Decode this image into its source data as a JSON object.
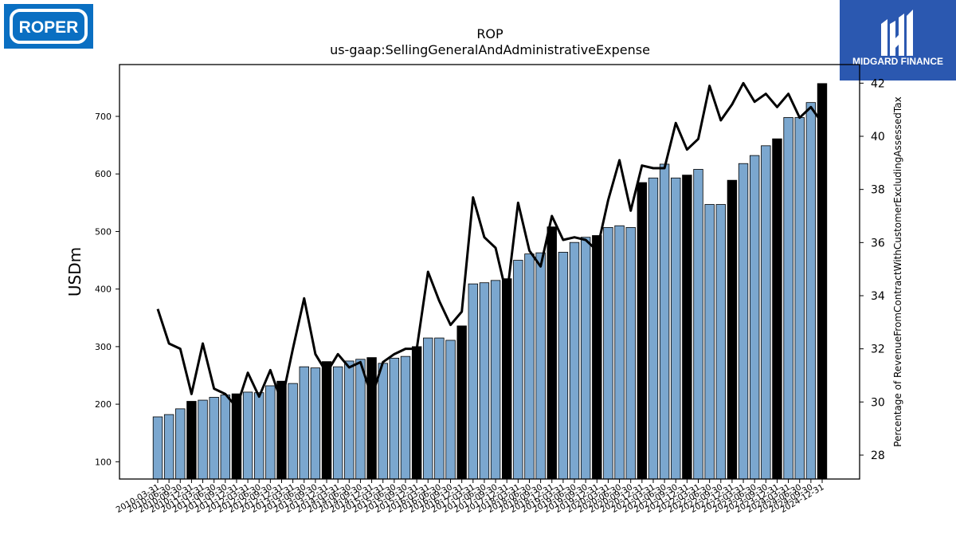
{
  "brand": {
    "left_logo_text": "ROPER",
    "left_logo_color": "#0a6fc2",
    "right_logo_text": "MIDGARD FINANCE",
    "right_logo_color": "#2b58b0"
  },
  "chart_data": {
    "type": "bar",
    "title": "ROP",
    "subtitle": "us-gaap:SellingGeneralAndAdministrativeExpense",
    "ylabel": "USDm",
    "y2label": "Percentage of RevenueFromContractWithCustomerExcludingAssessedTax",
    "ylim": [
      70,
      790
    ],
    "y2lim": [
      27.1,
      42.7
    ],
    "yticks": [
      100,
      200,
      300,
      400,
      500,
      600,
      700
    ],
    "y2ticks": [
      28,
      30,
      32,
      34,
      36,
      38,
      40,
      42
    ],
    "colors": {
      "quarter": "#7ba7cf",
      "annual": "#000000",
      "line": "#000000"
    },
    "categories": [
      "2010-03-31",
      "2010-06-30",
      "2010-09-30",
      "2010-12-31",
      "2011-03-31",
      "2011-06-30",
      "2011-09-30",
      "2011-12-31",
      "2012-03-31",
      "2012-06-30",
      "2012-09-30",
      "2012-12-31",
      "2013-03-31",
      "2013-06-30",
      "2013-09-30",
      "2013-12-31",
      "2014-03-31",
      "2014-06-30",
      "2014-09-30",
      "2014-12-31",
      "2015-03-31",
      "2015-06-30",
      "2015-09-30",
      "2015-12-31",
      "2016-03-31",
      "2016-06-30",
      "2016-09-30",
      "2016-12-31",
      "2017-03-31",
      "2017-06-30",
      "2017-09-30",
      "2017-12-31",
      "2018-03-31",
      "2018-06-30",
      "2018-09-30",
      "2018-12-31",
      "2019-03-31",
      "2019-06-30",
      "2019-09-30",
      "2019-12-31",
      "2020-03-31",
      "2020-06-30",
      "2020-09-30",
      "2020-12-31",
      "2021-03-31",
      "2021-06-30",
      "2021-09-30",
      "2021-12-31",
      "2022-03-31",
      "2022-06-30",
      "2022-09-30",
      "2022-12-31",
      "2023-03-31",
      "2023-06-30",
      "2023-09-30",
      "2023-12-31",
      "2024-03-31",
      "2024-06-30",
      "2024-09-30",
      "2024-12-31"
    ],
    "values": [
      178,
      182,
      192,
      205,
      207,
      212,
      216,
      218,
      221,
      220,
      232,
      240,
      236,
      265,
      263,
      274,
      265,
      275,
      278,
      281,
      271,
      280,
      283,
      300,
      315,
      315,
      311,
      336,
      409,
      411,
      415,
      418,
      450,
      461,
      463,
      508,
      464,
      481,
      490,
      493,
      507,
      510,
      507,
      585,
      593,
      617,
      593,
      598,
      608,
      547,
      547,
      589,
      618,
      632,
      649,
      661,
      698,
      698,
      724,
      757
    ],
    "annual": [
      false,
      false,
      false,
      true,
      false,
      false,
      false,
      true,
      false,
      false,
      false,
      true,
      false,
      false,
      false,
      true,
      false,
      false,
      false,
      true,
      false,
      false,
      false,
      true,
      false,
      false,
      false,
      true,
      false,
      false,
      false,
      true,
      false,
      false,
      false,
      true,
      false,
      false,
      false,
      true,
      false,
      false,
      false,
      true,
      false,
      false,
      false,
      true,
      false,
      false,
      false,
      true,
      false,
      false,
      false,
      true,
      false,
      false,
      false,
      true
    ],
    "line_values": [
      33.5,
      32.2,
      32.0,
      30.3,
      32.2,
      30.5,
      30.3,
      29.8,
      31.1,
      30.2,
      31.2,
      30.0,
      32.0,
      33.9,
      31.8,
      31.1,
      31.8,
      31.3,
      31.5,
      30.2,
      31.5,
      31.8,
      32.0,
      32.0,
      34.9,
      33.8,
      32.9,
      33.4,
      37.7,
      36.2,
      35.8,
      34.0,
      37.5,
      35.7,
      35.1,
      37.0,
      36.1,
      36.2,
      36.1,
      35.7,
      37.6,
      39.1,
      37.2,
      38.9,
      38.8,
      38.8,
      40.5,
      39.5,
      39.9,
      41.9,
      40.6,
      41.2,
      42.0,
      41.3,
      41.6,
      41.1,
      41.6,
      40.7,
      41.1,
      40.5
    ]
  }
}
